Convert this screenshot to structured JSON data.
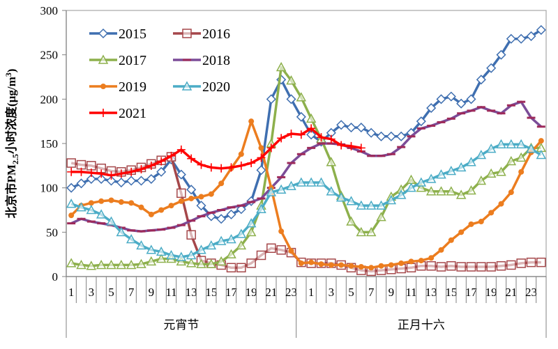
{
  "chart_data": {
    "type": "line",
    "title": "",
    "ylabel": {
      "main": "北京市PM",
      "sub": "2.5",
      "mid": "小时浓度(μg/m",
      "sup": "3",
      "end": ")"
    },
    "ylim": [
      0,
      300
    ],
    "yticks": [
      0,
      50,
      100,
      150,
      200,
      250,
      300
    ],
    "grid": false,
    "legend_placement": "top-left",
    "groups": [
      {
        "label": "元宵节",
        "tick_labels": [
          "1",
          "",
          "3",
          "",
          "5",
          "",
          "7",
          "",
          "9",
          "",
          "11",
          "",
          "13",
          "",
          "15",
          "",
          "17",
          "",
          "19",
          "",
          "21",
          "",
          "23"
        ]
      },
      {
        "label": "正月十六",
        "tick_labels": [
          "",
          "1",
          "",
          "3",
          "",
          "5",
          "",
          "7",
          "",
          "9",
          "",
          "11",
          "",
          "13",
          "",
          "15",
          "",
          "17",
          "",
          "19",
          "",
          "21",
          "",
          "23",
          ""
        ]
      }
    ],
    "series": [
      {
        "name": "2015",
        "color": "#3f6fb0",
        "marker": "diamond-open",
        "values": [
          100,
          105,
          110,
          110,
          108,
          106,
          108,
          108,
          110,
          118,
          132,
          115,
          98,
          80,
          68,
          65,
          70,
          76,
          85,
          120,
          200,
          222,
          200,
          180,
          160,
          152,
          162,
          171,
          168,
          168,
          162,
          158,
          158,
          158,
          162,
          175,
          190,
          200,
          203,
          195,
          200,
          222,
          235,
          250,
          268,
          268,
          271,
          278
        ]
      },
      {
        "name": "2016",
        "color": "#a5474a",
        "marker": "square-open",
        "values": [
          128,
          126,
          125,
          122,
          119,
          118,
          120,
          123,
          127,
          131,
          135,
          94,
          47,
          18,
          15,
          13,
          10,
          10,
          15,
          24,
          32,
          30,
          27,
          16,
          15,
          15,
          15,
          13,
          10,
          7,
          6,
          7,
          8,
          9,
          10,
          12,
          12,
          11,
          12,
          11,
          11,
          11,
          11,
          12,
          13,
          15,
          16,
          16
        ]
      },
      {
        "name": "2017",
        "color": "#8db04c",
        "marker": "triangle-open",
        "values": [
          15,
          13,
          12,
          13,
          13,
          13,
          13,
          14,
          17,
          20,
          20,
          17,
          15,
          14,
          14,
          17,
          25,
          35,
          50,
          80,
          150,
          236,
          221,
          202,
          178,
          155,
          129,
          91,
          62,
          50,
          50,
          67,
          90,
          98,
          109,
          100,
          96,
          96,
          96,
          92,
          97,
          108,
          116,
          118,
          130,
          134,
          145,
          145
        ]
      },
      {
        "name": "2018",
        "color": "#7b4c98",
        "marker": "dash",
        "marker_color": "#9e2a5a",
        "values": [
          60,
          65,
          62,
          60,
          58,
          55,
          52,
          51,
          52,
          53,
          55,
          58,
          63,
          68,
          72,
          75,
          78,
          80,
          84,
          88,
          100,
          112,
          128,
          138,
          145,
          150,
          150,
          149,
          145,
          141,
          136,
          136,
          138,
          146,
          158,
          167,
          170,
          174,
          178,
          184,
          187,
          191,
          187,
          184,
          193,
          197,
          179,
          169
        ]
      },
      {
        "name": "2019",
        "color": "#ec7d1f",
        "marker": "circle-filled",
        "values": [
          69,
          80,
          83,
          85,
          86,
          84,
          83,
          78,
          70,
          75,
          80,
          85,
          88,
          90,
          93,
          105,
          122,
          138,
          175,
          145,
          100,
          51,
          29,
          15,
          16,
          14,
          13,
          13,
          12,
          11,
          10,
          12,
          13,
          15,
          17,
          18,
          21,
          30,
          41,
          50,
          59,
          62,
          72,
          82,
          95,
          118,
          140,
          153
        ]
      },
      {
        "name": "2020",
        "color": "#4bacc6",
        "marker": "triangle-open",
        "values": [
          82,
          78,
          75,
          70,
          62,
          50,
          42,
          35,
          30,
          28,
          24,
          22,
          24,
          30,
          35,
          40,
          42,
          48,
          60,
          76,
          95,
          98,
          102,
          106,
          106,
          106,
          96,
          89,
          85,
          80,
          80,
          80,
          86,
          92,
          100,
          106,
          110,
          115,
          119,
          123,
          129,
          137,
          144,
          149,
          149,
          149,
          144,
          137
        ]
      },
      {
        "name": "2021",
        "color": "#ff0000",
        "marker": "plus",
        "values": [
          118,
          118,
          117,
          116,
          114,
          116,
          118,
          121,
          125,
          130,
          136,
          143,
          133,
          126,
          123,
          122,
          123,
          125,
          128,
          134,
          145,
          156,
          161,
          160,
          167,
          157,
          155,
          148,
          147,
          145
        ]
      }
    ]
  }
}
